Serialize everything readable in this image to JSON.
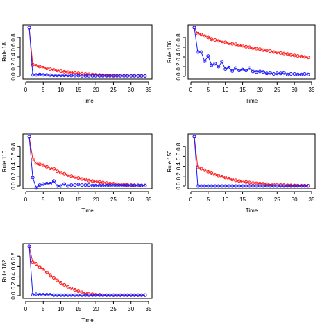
{
  "colors": {
    "red": "#ff1a1a",
    "blue": "#1a1aff",
    "axis": "#000000"
  },
  "chart_data": [
    {
      "type": "line",
      "ylabel": "Rule 18",
      "xlabel": "Time",
      "xlim": [
        0,
        35
      ],
      "ylim": [
        0,
        1
      ],
      "xticks": [
        0,
        5,
        10,
        15,
        20,
        25,
        30,
        35
      ],
      "yticks": [
        0.0,
        0.2,
        0.4,
        0.6,
        0.8
      ],
      "ytick_labels": [
        "0.0",
        "0.2",
        "0.4",
        "0.6",
        "0.8"
      ],
      "x": [
        1,
        2,
        3,
        4,
        5,
        6,
        7,
        8,
        9,
        10,
        11,
        12,
        13,
        14,
        15,
        16,
        17,
        18,
        19,
        20,
        21,
        22,
        23,
        24,
        25,
        26,
        27,
        28,
        29,
        30,
        31,
        32,
        33,
        34
      ],
      "series": [
        {
          "color": "red",
          "values": [
            1.0,
            0.24,
            0.22,
            0.2,
            0.18,
            0.163,
            0.147,
            0.132,
            0.118,
            0.106,
            0.095,
            0.085,
            0.076,
            0.068,
            0.061,
            0.054,
            0.048,
            0.043,
            0.038,
            0.034,
            0.03,
            0.027,
            0.024,
            0.021,
            0.019,
            0.017,
            0.015,
            0.013,
            0.012,
            0.011,
            0.01,
            0.009,
            0.008,
            0.007
          ]
        },
        {
          "color": "blue",
          "values": [
            1.0,
            0.03,
            0.03,
            0.04,
            0.03,
            0.03,
            0.025,
            0.02,
            0.02,
            0.02,
            0.02,
            0.02,
            0.015,
            0.015,
            0.015,
            0.01,
            0.01,
            0.01,
            0.01,
            0.01,
            0.01,
            0.01,
            0.01,
            0.01,
            0.01,
            0.01,
            0.01,
            0.01,
            0.01,
            0.01,
            0.01,
            0.01,
            0.01,
            0.01
          ]
        }
      ]
    },
    {
      "type": "line",
      "ylabel": "Rule 106",
      "xlabel": "Time",
      "xlim": [
        0,
        35
      ],
      "ylim": [
        0,
        1
      ],
      "xticks": [
        0,
        5,
        10,
        15,
        20,
        25,
        30,
        35
      ],
      "yticks": [
        0.0,
        0.2,
        0.4,
        0.6,
        0.8
      ],
      "ytick_labels": [
        "0.0",
        "0.2",
        "0.4",
        "0.6",
        "0.8"
      ],
      "x": [
        1,
        2,
        3,
        4,
        5,
        6,
        7,
        8,
        9,
        10,
        11,
        12,
        13,
        14,
        15,
        16,
        17,
        18,
        19,
        20,
        21,
        22,
        23,
        24,
        25,
        26,
        27,
        28,
        29,
        30,
        31,
        32,
        33,
        34
      ],
      "series": [
        {
          "color": "red",
          "values": [
            1.0,
            0.88,
            0.86,
            0.83,
            0.8,
            0.76,
            0.75,
            0.73,
            0.72,
            0.7,
            0.68,
            0.67,
            0.66,
            0.64,
            0.63,
            0.61,
            0.6,
            0.58,
            0.57,
            0.56,
            0.54,
            0.53,
            0.52,
            0.5,
            0.49,
            0.48,
            0.47,
            0.46,
            0.44,
            0.43,
            0.42,
            0.41,
            0.4,
            0.39
          ]
        },
        {
          "color": "blue",
          "values": [
            1.0,
            0.5,
            0.5,
            0.31,
            0.42,
            0.23,
            0.26,
            0.2,
            0.3,
            0.15,
            0.18,
            0.11,
            0.17,
            0.12,
            0.14,
            0.12,
            0.17,
            0.1,
            0.09,
            0.1,
            0.09,
            0.06,
            0.07,
            0.05,
            0.06,
            0.06,
            0.07,
            0.04,
            0.05,
            0.05,
            0.04,
            0.04,
            0.05,
            0.04
          ]
        }
      ]
    },
    {
      "type": "line",
      "ylabel": "Rule 110",
      "xlabel": "Time",
      "xlim": [
        0,
        35
      ],
      "ylim": [
        0,
        1
      ],
      "xticks": [
        0,
        5,
        10,
        15,
        20,
        25,
        30,
        35
      ],
      "yticks": [
        0.0,
        0.2,
        0.4,
        0.6,
        0.8
      ],
      "ytick_labels": [
        "0.0",
        "0.2",
        "0.4",
        "0.6",
        "0.8"
      ],
      "x": [
        1,
        2,
        3,
        4,
        5,
        6,
        7,
        8,
        9,
        10,
        11,
        12,
        13,
        14,
        15,
        16,
        17,
        18,
        19,
        20,
        21,
        22,
        23,
        24,
        25,
        26,
        27,
        28,
        29,
        30,
        31,
        32,
        33,
        34
      ],
      "series": [
        {
          "color": "red",
          "values": [
            1.0,
            0.55,
            0.46,
            0.44,
            0.42,
            0.39,
            0.36,
            0.35,
            0.3,
            0.27,
            0.25,
            0.22,
            0.2,
            0.18,
            0.16,
            0.14,
            0.13,
            0.11,
            0.1,
            0.09,
            0.08,
            0.07,
            0.06,
            0.05,
            0.045,
            0.04,
            0.035,
            0.03,
            0.025,
            0.02,
            0.018,
            0.015,
            0.012,
            0.01
          ]
        },
        {
          "color": "blue",
          "values": [
            1.0,
            0.17,
            -0.04,
            0.02,
            0.04,
            0.05,
            0.05,
            0.1,
            0.0,
            0.0,
            0.04,
            0.0,
            0.02,
            0.02,
            0.03,
            0.02,
            0.02,
            0.02,
            0.01,
            0.01,
            0.01,
            0.01,
            0.01,
            0.01,
            0.01,
            0.01,
            0.01,
            0.01,
            0.01,
            0.01,
            0.01,
            0.01,
            0.01,
            0.01
          ]
        }
      ]
    },
    {
      "type": "line",
      "ylabel": "Rule 150",
      "xlabel": "Time",
      "xlim": [
        0,
        35
      ],
      "ylim": [
        0,
        1
      ],
      "xticks": [
        0,
        5,
        10,
        15,
        20,
        25,
        30,
        35
      ],
      "yticks": [
        0.0,
        0.2,
        0.4,
        0.6,
        0.8
      ],
      "ytick_labels": [
        "0.0",
        "0.2",
        "0.4",
        "0.6",
        "0.8"
      ],
      "x": [
        1,
        2,
        3,
        4,
        5,
        6,
        7,
        8,
        9,
        10,
        11,
        12,
        13,
        14,
        15,
        16,
        17,
        18,
        19,
        20,
        21,
        22,
        23,
        24,
        25,
        26,
        27,
        28,
        29,
        30,
        31,
        32,
        33,
        34
      ],
      "series": [
        {
          "color": "red",
          "values": [
            1.0,
            0.38,
            0.35,
            0.32,
            0.29,
            0.26,
            0.23,
            0.21,
            0.19,
            0.17,
            0.15,
            0.13,
            0.115,
            0.1,
            0.09,
            0.08,
            0.07,
            0.06,
            0.055,
            0.05,
            0.045,
            0.04,
            0.035,
            0.03,
            0.026,
            0.022,
            0.019,
            0.016,
            0.014,
            0.012,
            0.01,
            0.009,
            0.008,
            0.007
          ]
        },
        {
          "color": "blue",
          "values": [
            1.0,
            0.0,
            0.0,
            0.0,
            0.0,
            0.0,
            0.0,
            0.0,
            0.0,
            0.0,
            0.0,
            0.0,
            0.0,
            0.0,
            0.0,
            0.0,
            0.0,
            0.0,
            0.0,
            0.0,
            0.0,
            0.0,
            0.0,
            0.0,
            0.0,
            0.0,
            0.0,
            0.0,
            0.0,
            0.0,
            0.0,
            0.0,
            0.0,
            0.0
          ]
        }
      ]
    },
    {
      "type": "line",
      "ylabel": "Rule 182",
      "xlabel": "Time",
      "xlim": [
        0,
        35
      ],
      "ylim": [
        0,
        1
      ],
      "xticks": [
        0,
        5,
        10,
        15,
        20,
        25,
        30,
        35
      ],
      "yticks": [
        0.0,
        0.2,
        0.4,
        0.6,
        0.8
      ],
      "ytick_labels": [
        "0.0",
        "0.2",
        "0.4",
        "0.6",
        "0.8"
      ],
      "x": [
        1,
        2,
        3,
        4,
        5,
        6,
        7,
        8,
        9,
        10,
        11,
        12,
        13,
        14,
        15,
        16,
        17,
        18,
        19,
        20,
        21,
        22,
        23,
        24,
        25,
        26,
        27,
        28,
        29,
        30,
        31,
        32,
        33,
        34
      ],
      "series": [
        {
          "color": "red",
          "values": [
            1.0,
            0.68,
            0.64,
            0.58,
            0.53,
            0.47,
            0.41,
            0.36,
            0.31,
            0.26,
            0.22,
            0.18,
            0.15,
            0.12,
            0.09,
            0.07,
            0.05,
            0.04,
            0.03,
            0.02,
            0.02,
            0.01,
            0.01,
            0.01,
            0.01,
            0.01,
            0.01,
            0.01,
            0.01,
            0.01,
            0.01,
            0.01,
            0.01,
            0.01
          ]
        },
        {
          "color": "blue",
          "values": [
            1.0,
            0.02,
            0.03,
            0.02,
            0.02,
            0.02,
            0.02,
            0.01,
            0.01,
            0.01,
            0.01,
            0.01,
            0.01,
            0.01,
            0.01,
            0.01,
            0.01,
            0.01,
            0.01,
            0.01,
            0.01,
            0.01,
            0.01,
            0.01,
            0.01,
            0.01,
            0.01,
            0.01,
            0.01,
            0.01,
            0.01,
            0.01,
            0.01,
            0.01
          ]
        }
      ]
    }
  ]
}
